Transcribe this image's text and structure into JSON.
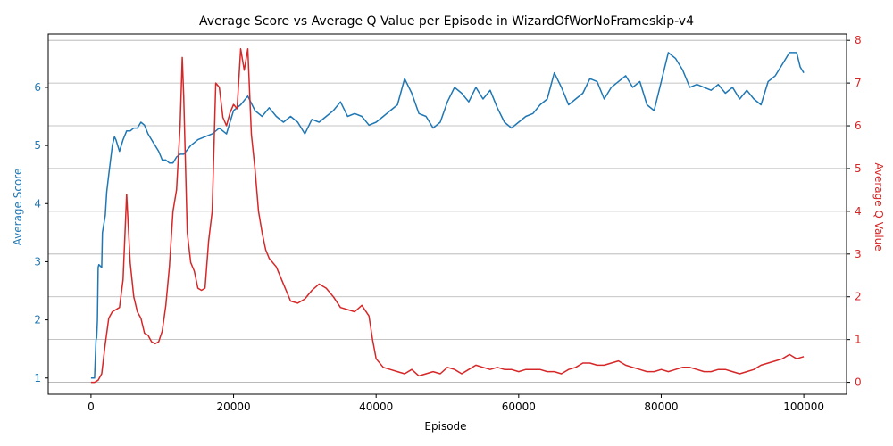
{
  "chart_data": {
    "type": "line",
    "title": "Average Score vs Average Q Value per Episode in WizardOfWorNoFrameskip-v4",
    "xlabel": "Episode",
    "ylabel_left": "Average Score",
    "ylabel_right": "Average Q Value",
    "xlim": [
      -6000,
      106000
    ],
    "ylim_left": [
      0.72,
      6.92
    ],
    "ylim_right": [
      -0.28,
      8.15
    ],
    "x_ticks": [
      0,
      20000,
      40000,
      60000,
      80000,
      100000
    ],
    "x_tick_labels": [
      "0",
      "20000",
      "40000",
      "60000",
      "80000",
      "100000"
    ],
    "y_left_ticks": [
      1,
      2,
      3,
      4,
      5,
      6
    ],
    "y_left_tick_labels": [
      "1",
      "2",
      "3",
      "4",
      "5",
      "6"
    ],
    "y_right_ticks": [
      0,
      1,
      2,
      3,
      4,
      5,
      6,
      7,
      8
    ],
    "y_right_tick_labels": [
      "0",
      "1",
      "2",
      "3",
      "4",
      "5",
      "6",
      "7",
      "8"
    ],
    "grid": "horizontal (right axis)",
    "colors": {
      "score": "#1f77b4",
      "q": "#d62728",
      "grid": "#b0b0b0",
      "axis": "#000000"
    },
    "series": [
      {
        "axis": "left",
        "x": [
          0,
          500,
          700,
          800,
          900,
          1000,
          1100,
          1500,
          1600,
          2000,
          2200,
          2500,
          3000,
          3300,
          3500,
          4000,
          4500,
          5000,
          5500,
          6000,
          6500,
          7000,
          7500,
          8000,
          8500,
          9000,
          9500,
          10000,
          10500,
          11000,
          11500,
          12000,
          12500,
          13000,
          14000,
          14500,
          15000,
          16000,
          17000,
          18000,
          19000,
          20000,
          21000,
          22000,
          23000,
          24000,
          25000,
          26000,
          27000,
          28000,
          29000,
          30000,
          31000,
          32000,
          33000,
          34000,
          35000,
          36000,
          37000,
          38000,
          39000,
          40000,
          41000,
          42000,
          43000,
          44000,
          45000,
          46000,
          47000,
          48000,
          49000,
          50000,
          51000,
          52000,
          53000,
          54000,
          55000,
          56000,
          57000,
          58000,
          59000,
          60000,
          61000,
          62000,
          63000,
          64000,
          65000,
          66000,
          67000,
          68000,
          69000,
          70000,
          71000,
          72000,
          73000,
          74000,
          75000,
          76000,
          77000,
          78000,
          79000,
          80000,
          81000,
          82000,
          83000,
          84000,
          85000,
          86000,
          87000,
          88000,
          89000,
          90000,
          91000,
          92000,
          93000,
          94000,
          95000,
          96000,
          97000,
          98000,
          99000,
          99500,
          100000
        ],
        "y": [
          1.0,
          1.0,
          1.65,
          1.7,
          2.0,
          2.9,
          2.95,
          2.9,
          3.5,
          3.8,
          4.2,
          4.5,
          5.0,
          5.15,
          5.1,
          4.9,
          5.1,
          5.25,
          5.25,
          5.3,
          5.3,
          5.4,
          5.35,
          5.2,
          5.1,
          5.0,
          4.9,
          4.75,
          4.75,
          4.7,
          4.7,
          4.8,
          4.85,
          4.85,
          5.0,
          5.05,
          5.1,
          5.15,
          5.2,
          5.3,
          5.2,
          5.6,
          5.7,
          5.85,
          5.6,
          5.5,
          5.65,
          5.5,
          5.4,
          5.5,
          5.4,
          5.2,
          5.45,
          5.4,
          5.5,
          5.6,
          5.75,
          5.5,
          5.55,
          5.5,
          5.35,
          5.4,
          5.5,
          5.6,
          5.7,
          6.15,
          5.9,
          5.55,
          5.5,
          5.3,
          5.4,
          5.75,
          6.0,
          5.9,
          5.75,
          6.0,
          5.8,
          5.95,
          5.65,
          5.4,
          5.3,
          5.4,
          5.5,
          5.55,
          5.7,
          5.8,
          6.25,
          6.0,
          5.7,
          5.8,
          5.9,
          6.15,
          6.1,
          5.8,
          6.0,
          6.1,
          6.2,
          6.0,
          6.1,
          5.7,
          5.6,
          6.1,
          6.6,
          6.5,
          6.3,
          6.0,
          6.05,
          6.0,
          5.95,
          6.05,
          5.9,
          6.0,
          5.8,
          5.95,
          5.8,
          5.7,
          6.1,
          6.2,
          6.4,
          6.6,
          6.6,
          6.35,
          6.25
        ]
      },
      {
        "axis": "right",
        "x": [
          0,
          500,
          1000,
          1500,
          2000,
          2500,
          3000,
          3500,
          4000,
          4500,
          5000,
          5500,
          6000,
          6500,
          7000,
          7500,
          8000,
          8500,
          9000,
          9500,
          10000,
          10500,
          11000,
          11500,
          12000,
          12500,
          12800,
          13000,
          13500,
          14000,
          14500,
          15000,
          15500,
          16000,
          16500,
          17000,
          17500,
          18000,
          18500,
          19000,
          19500,
          20000,
          20500,
          21000,
          21500,
          22000,
          22500,
          23000,
          23500,
          24000,
          24500,
          25000,
          26000,
          27000,
          28000,
          29000,
          30000,
          31000,
          32000,
          33000,
          34000,
          35000,
          36000,
          37000,
          38000,
          39000,
          39500,
          40000,
          41000,
          42000,
          43000,
          44000,
          45000,
          46000,
          47000,
          48000,
          49000,
          50000,
          51000,
          52000,
          53000,
          54000,
          55000,
          56000,
          57000,
          58000,
          59000,
          60000,
          61000,
          62000,
          63000,
          64000,
          65000,
          66000,
          67000,
          68000,
          69000,
          70000,
          71000,
          72000,
          73000,
          74000,
          75000,
          76000,
          77000,
          78000,
          79000,
          80000,
          81000,
          82000,
          83000,
          84000,
          85000,
          86000,
          87000,
          88000,
          89000,
          90000,
          91000,
          92000,
          93000,
          94000,
          95000,
          96000,
          97000,
          98000,
          99000,
          100000
        ],
        "y": [
          0.0,
          0.0,
          0.05,
          0.2,
          0.9,
          1.5,
          1.65,
          1.7,
          1.75,
          2.4,
          4.4,
          2.8,
          2.0,
          1.65,
          1.5,
          1.15,
          1.1,
          0.95,
          0.9,
          0.95,
          1.2,
          1.8,
          2.7,
          4.0,
          4.5,
          6.0,
          7.6,
          6.7,
          3.5,
          2.8,
          2.6,
          2.2,
          2.15,
          2.2,
          3.3,
          4.0,
          7.0,
          6.9,
          6.2,
          6.0,
          6.3,
          6.5,
          6.4,
          7.8,
          7.3,
          7.8,
          5.8,
          5.0,
          4.0,
          3.5,
          3.1,
          2.9,
          2.7,
          2.3,
          1.9,
          1.85,
          1.95,
          2.15,
          2.3,
          2.2,
          2.0,
          1.75,
          1.7,
          1.65,
          1.8,
          1.55,
          1.0,
          0.55,
          0.35,
          0.3,
          0.25,
          0.2,
          0.3,
          0.15,
          0.2,
          0.25,
          0.2,
          0.35,
          0.3,
          0.2,
          0.3,
          0.4,
          0.35,
          0.3,
          0.35,
          0.3,
          0.3,
          0.25,
          0.3,
          0.3,
          0.3,
          0.25,
          0.25,
          0.2,
          0.3,
          0.35,
          0.45,
          0.45,
          0.4,
          0.4,
          0.45,
          0.5,
          0.4,
          0.35,
          0.3,
          0.25,
          0.25,
          0.3,
          0.25,
          0.3,
          0.35,
          0.35,
          0.3,
          0.25,
          0.25,
          0.3,
          0.3,
          0.25,
          0.2,
          0.25,
          0.3,
          0.4,
          0.45,
          0.5,
          0.55,
          0.65,
          0.55,
          0.6
        ]
      }
    ]
  }
}
